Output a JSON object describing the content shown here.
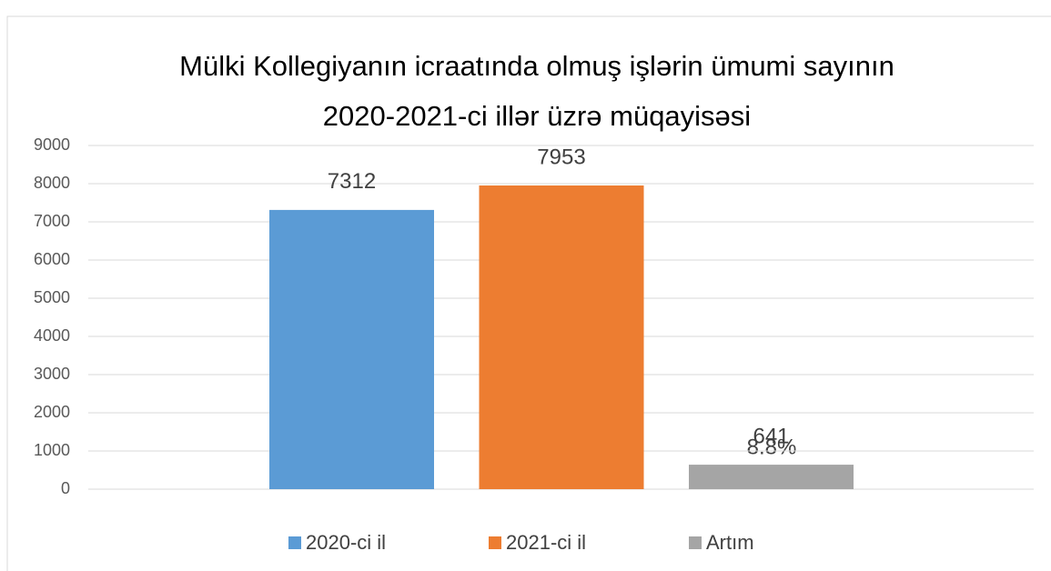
{
  "chart_data": {
    "type": "bar",
    "title": [
      "Mülki Kollegiyanın icraatında olmuş işlərin ümumi sayının",
      "2020-2021-ci illər üzrə müqayisəsi"
    ],
    "categories": [
      null
    ],
    "series": [
      {
        "name": "2020-ci il",
        "color": "#5b9bd5",
        "values": [
          7312
        ]
      },
      {
        "name": "2021-ci il",
        "color": "#ed7d31",
        "values": [
          7953
        ]
      },
      {
        "name": "Artım",
        "color": "#a5a5a5",
        "values": [
          641
        ]
      }
    ],
    "annotation": "8.8%",
    "ylim": [
      0,
      9000
    ],
    "yticks": [
      0,
      1000,
      2000,
      3000,
      4000,
      5000,
      6000,
      7000,
      8000,
      9000
    ],
    "grid": true,
    "legend": "bottom"
  }
}
